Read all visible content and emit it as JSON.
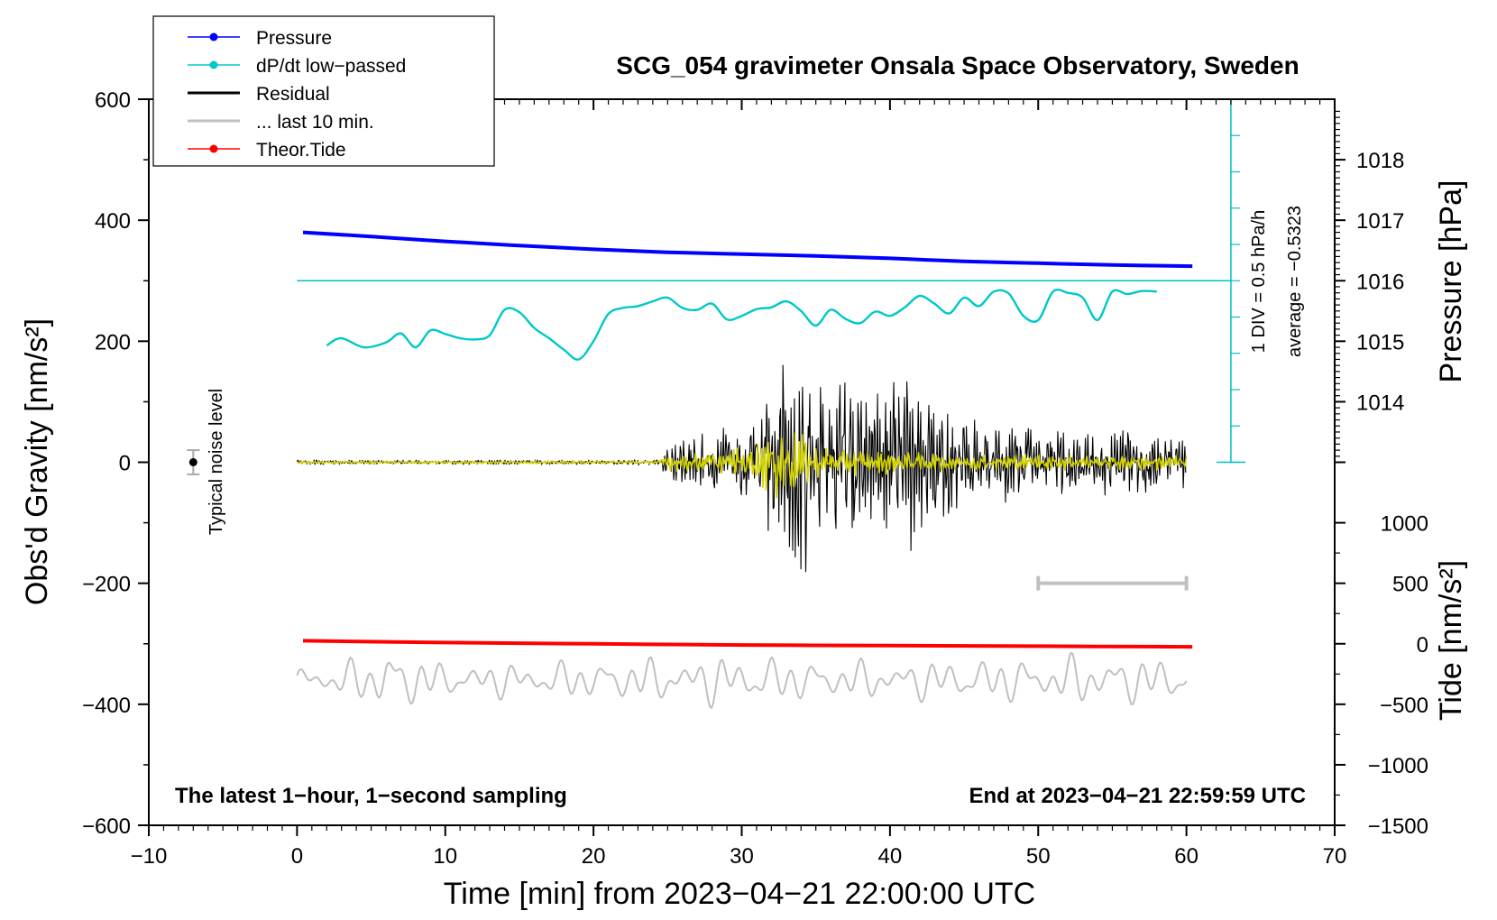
{
  "chart_data": {
    "type": "line",
    "title": "SCG_054 gravimeter Onsala Space Observatory, Sweden",
    "xlabel": "Time [min] from 2023−04−21 22:00:00 UTC",
    "ylabel_left": "Obs'd Gravity [nm/s²]",
    "ylabel_pressure": "Pressure [hPa]",
    "ylabel_tide": "Tide [nm/s²]",
    "x_range": [
      -10,
      70
    ],
    "y_range": [
      -600,
      600
    ],
    "x_ticks": [
      -10,
      0,
      10,
      20,
      30,
      40,
      50,
      60,
      70
    ],
    "x_tick_labels": [
      "−10",
      "0",
      "10",
      "20",
      "30",
      "40",
      "50",
      "60",
      "70"
    ],
    "y_ticks": [
      600,
      400,
      200,
      0,
      -200,
      -400,
      -600
    ],
    "y_tick_labels": [
      "600",
      "400",
      "200",
      "0",
      "−200",
      "−400",
      "−600"
    ],
    "pressure_axis": {
      "ticks": [
        1018,
        1017,
        1016,
        1015,
        1014
      ],
      "tick_labels": [
        "1018",
        "1017",
        "1016",
        "1015",
        "1014"
      ],
      "gravity_of_1016": 300,
      "gravity_per_hPa": 100
    },
    "tide_axis": {
      "ticks": [
        1000,
        500,
        0,
        -500,
        -1000,
        -1500
      ],
      "tick_labels": [
        "1000",
        "500",
        "0",
        "−500",
        "−1000",
        "−1500"
      ],
      "gravity_of_zero": -300,
      "gravity_per_nm": 0.2
    },
    "dpdt_scale": {
      "label": "1 DIV = 0.5 hPa/h",
      "average_label": "average = −0.5323",
      "x": 63,
      "y_baseline": 0,
      "y_top": 600,
      "y_average": 300
    },
    "noise_level": {
      "label": "Typical noise level",
      "x": -7,
      "center": 0,
      "half_range": 20
    },
    "last10_marker": {
      "x_start": 50,
      "x_end": 60,
      "y": -200
    },
    "series": [
      {
        "name": "Pressure",
        "color": "#0000ff",
        "kind": "smooth",
        "x": [
          0.4,
          5,
          10,
          15,
          20,
          25,
          30,
          35,
          40,
          45,
          50,
          55,
          60.4
        ],
        "y": [
          380,
          373,
          365,
          358,
          352,
          347,
          344,
          341,
          337,
          332,
          329,
          326,
          324
        ]
      },
      {
        "name": "dP/dt low−passed",
        "color": "#00c8c8",
        "kind": "smooth",
        "x": [
          2,
          3,
          4.5,
          6,
          7,
          8,
          9,
          10,
          11,
          12,
          13,
          14,
          15,
          16,
          17,
          18,
          19,
          20,
          21,
          22,
          23,
          24,
          25,
          26,
          27,
          28,
          29,
          30,
          31,
          32,
          33,
          34,
          35,
          36,
          37,
          38,
          39,
          40,
          41,
          42,
          43,
          44,
          45,
          46,
          47,
          48,
          49,
          50,
          51,
          52,
          53,
          54,
          55,
          56,
          57,
          58
        ],
        "y": [
          193,
          205,
          190,
          198,
          213,
          190,
          218,
          212,
          205,
          203,
          210,
          252,
          248,
          222,
          205,
          186,
          170,
          200,
          245,
          255,
          258,
          266,
          272,
          255,
          252,
          262,
          236,
          242,
          253,
          256,
          266,
          250,
          226,
          252,
          237,
          230,
          249,
          242,
          256,
          275,
          262,
          246,
          272,
          258,
          282,
          279,
          242,
          235,
          282,
          280,
          272,
          235,
          282,
          278,
          283,
          282
        ]
      },
      {
        "name": "Residual",
        "color": "#000000",
        "kind": "noise",
        "x": [
          0,
          10,
          20,
          24.5,
          25,
          28,
          31,
          32.5,
          34,
          35,
          37,
          39.5,
          40,
          42,
          45,
          50,
          55,
          60
        ],
        "amplitude": [
          3,
          3,
          3,
          4,
          25,
          40,
          70,
          130,
          190,
          110,
          120,
          90,
          130,
          110,
          60,
          45,
          45,
          35
        ]
      },
      {
        "name": "... last 10 min.",
        "color": "#c0c0c0",
        "kind": "noise",
        "offset": -360,
        "x": [
          0,
          5,
          6,
          7,
          10,
          20,
          30,
          35,
          40,
          50,
          55,
          60
        ],
        "amplitude": [
          20,
          35,
          60,
          45,
          25,
          30,
          40,
          30,
          30,
          35,
          40,
          30
        ]
      },
      {
        "name": "Theor.Tide",
        "color": "#ff0000",
        "kind": "smooth",
        "x": [
          0.4,
          10,
          20,
          30,
          40,
          50,
          60.4
        ],
        "y": [
          -295,
          -298,
          -300,
          -302,
          -303,
          -304,
          -305
        ]
      },
      {
        "name": "",
        "color": "#d4d400",
        "kind": "noise",
        "x": [
          0,
          24.5,
          25,
          29,
          31,
          32.5,
          33.5,
          35,
          40,
          45,
          50,
          55,
          60
        ],
        "amplitude": [
          2,
          2,
          12,
          15,
          25,
          55,
          45,
          20,
          15,
          12,
          10,
          10,
          10
        ]
      }
    ],
    "legend": {
      "placement": "top-left",
      "entries": [
        {
          "label": "Pressure",
          "color": "#0000ff",
          "marker": "dot",
          "weight": "thin"
        },
        {
          "label": "dP/dt low−passed",
          "color": "#00c8c8",
          "marker": "dot",
          "weight": "thin"
        },
        {
          "label": "Residual",
          "color": "#000000",
          "marker": "none",
          "weight": "thick"
        },
        {
          "label": "... last 10 min.",
          "color": "#c0c0c0",
          "marker": "none",
          "weight": "thick"
        },
        {
          "label": "Theor.Tide",
          "color": "#ff0000",
          "marker": "dot",
          "weight": "thin"
        }
      ]
    },
    "note_bottom_left": "The latest 1−hour, 1−second sampling",
    "note_bottom_right": "End at 2023−04−21 22:59:59 UTC"
  }
}
